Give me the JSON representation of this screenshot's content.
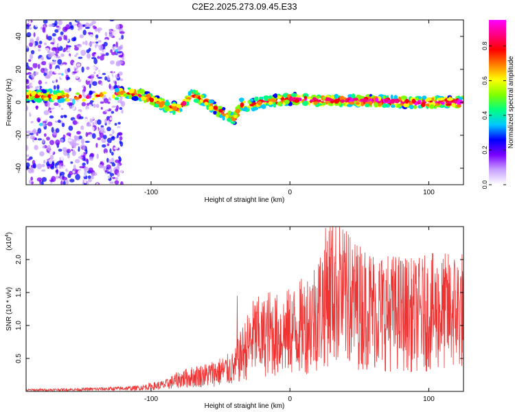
{
  "title": "C2E2.2025.273.09.45.E33",
  "chart_data": [
    {
      "type": "heatmap",
      "name": "spectrogram",
      "xlabel": "Height of straight line (km)",
      "ylabel": "Frequency (Hz)",
      "xlim": [
        -190,
        125
      ],
      "ylim": [
        -50,
        50
      ],
      "xticks": [
        -100,
        0,
        100
      ],
      "yticks": [
        -40,
        -20,
        0,
        20,
        40
      ],
      "xtick_labels": [
        "-100",
        "0",
        "100"
      ],
      "ytick_labels": [
        "-40",
        "-20",
        "0",
        "20",
        "40"
      ],
      "colorbar": {
        "label": "Normalized spectral amplitude",
        "range": [
          0.0,
          0.95
        ],
        "ticks": [
          0.0,
          0.2,
          0.4,
          0.6,
          0.8
        ],
        "tick_labels": [
          "0.0",
          "0.2",
          "0.4",
          "0.6",
          "0.8"
        ],
        "colors": [
          "#ffffff",
          "#c8a0ff",
          "#7a00ff",
          "#0000ff",
          "#00c8ff",
          "#00ff80",
          "#80ff00",
          "#ffff00",
          "#ff8000",
          "#ff0000",
          "#ff0080",
          "#ff00ff"
        ]
      },
      "ridge": {
        "x": [
          -190,
          -180,
          -170,
          -160,
          -150,
          -140,
          -130,
          -120,
          -110,
          -100,
          -90,
          -80,
          -70,
          -60,
          -50,
          -40,
          -35,
          -30,
          -25,
          -20,
          -10,
          0,
          10,
          20,
          40,
          60,
          80,
          100,
          125
        ],
        "y": [
          4,
          4,
          4,
          3,
          3,
          3,
          4,
          6,
          5,
          2,
          -2,
          -4,
          5,
          0,
          -6,
          -10,
          -1,
          -2,
          -1,
          0,
          1,
          2,
          2,
          1,
          1,
          1,
          0,
          0,
          0
        ]
      },
      "noise_region_x": [
        -190,
        -120
      ]
    },
    {
      "type": "line",
      "name": "snr",
      "xlabel": "Height of straight line (km)",
      "ylabel": "SNR (10 * v/v)",
      "scale_label": "(x10",
      "scale_exp": "4",
      "scale_close": ")",
      "xlim": [
        -190,
        125
      ],
      "ylim": [
        0,
        2.5
      ],
      "xticks": [
        -100,
        0,
        100
      ],
      "yticks": [
        0.5,
        1.0,
        1.5,
        2.0
      ],
      "xtick_labels": [
        "-100",
        "0",
        "100"
      ],
      "ytick_labels": [
        "0.5",
        "1.0",
        "1.5",
        "2.0"
      ],
      "color": "#ee3333",
      "envelope": {
        "x": [
          -190,
          -150,
          -110,
          -90,
          -80,
          -70,
          -60,
          -50,
          -40,
          -35,
          -30,
          -25,
          -20,
          -15,
          -10,
          0,
          10,
          20,
          25,
          30,
          35,
          40,
          50,
          60,
          70,
          80,
          90,
          100,
          110,
          125
        ],
        "y": [
          0.02,
          0.03,
          0.05,
          0.1,
          0.18,
          0.22,
          0.25,
          0.3,
          0.35,
          0.55,
          0.7,
          0.85,
          0.8,
          0.9,
          0.85,
          0.9,
          1.0,
          1.2,
          1.4,
          1.6,
          1.5,
          1.4,
          1.3,
          1.25,
          1.2,
          1.2,
          1.15,
          1.2,
          1.2,
          1.25
        ]
      },
      "peaks": [
        {
          "x": -38,
          "y": 1.45
        },
        {
          "x": 33,
          "y": 2.5
        },
        {
          "x": 42,
          "y": 2.38
        },
        {
          "x": 27,
          "y": 2.28
        },
        {
          "x": 36,
          "y": 2.2
        },
        {
          "x": 48,
          "y": 2.05
        },
        {
          "x": 57,
          "y": 1.88
        },
        {
          "x": 74,
          "y": 1.75
        }
      ]
    }
  ]
}
